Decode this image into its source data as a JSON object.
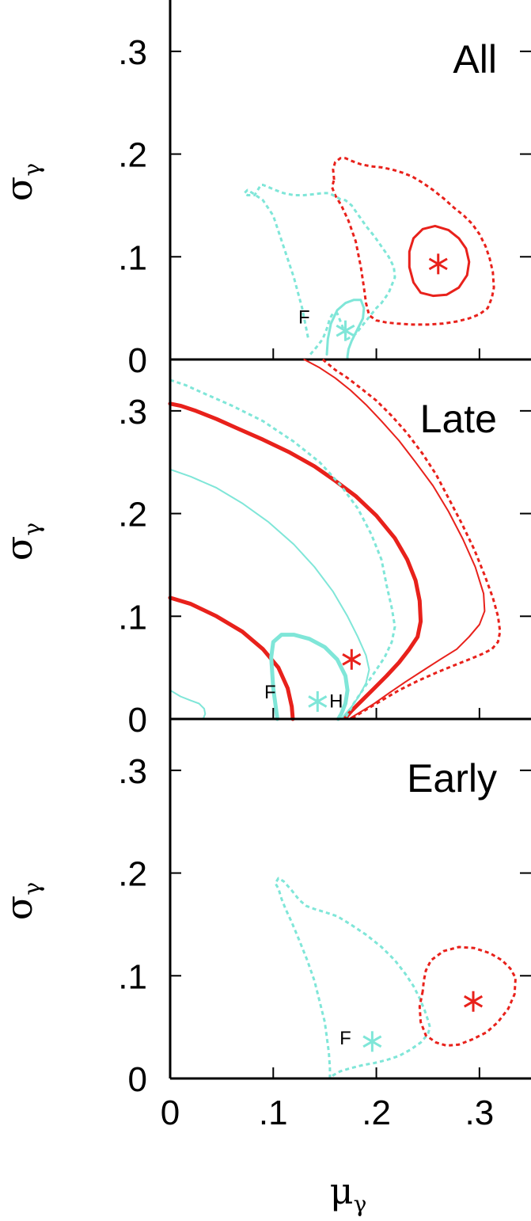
{
  "chart_data": [
    {
      "type": "line",
      "title": "All",
      "xlim": [
        0,
        0.35
      ],
      "ylim": [
        0,
        0.35
      ],
      "y_ticks": [
        0,
        0.1,
        0.2,
        0.3
      ],
      "y_tick_labels": [
        "0",
        ".1",
        ".2",
        ".3"
      ],
      "ylabel": {
        "symbol": "σ",
        "subscript": "γ"
      },
      "grid": false,
      "colors": {
        "red": "#e8211b",
        "cyan": "#7fe6d8"
      },
      "series": [
        {
          "color": "red",
          "style": "dotted",
          "width": 3,
          "x": [
            0.159,
            0.158,
            0.16,
            0.165,
            0.17,
            0.177,
            0.185,
            0.195,
            0.205,
            0.215,
            0.225,
            0.235,
            0.245,
            0.255,
            0.265,
            0.275,
            0.285,
            0.293,
            0.3,
            0.306,
            0.31,
            0.313,
            0.314,
            0.312,
            0.308,
            0.3,
            0.29,
            0.278,
            0.265,
            0.25,
            0.235,
            0.22,
            0.21,
            0.2,
            0.193,
            0.19,
            0.188,
            0.185,
            0.18,
            0.173,
            0.166,
            0.16,
            0.157,
            0.159
          ],
          "y": [
            0.175,
            0.185,
            0.192,
            0.196,
            0.196,
            0.193,
            0.19,
            0.188,
            0.187,
            0.185,
            0.182,
            0.178,
            0.172,
            0.165,
            0.157,
            0.148,
            0.14,
            0.132,
            0.122,
            0.11,
            0.098,
            0.085,
            0.07,
            0.06,
            0.05,
            0.044,
            0.04,
            0.037,
            0.035,
            0.034,
            0.034,
            0.035,
            0.036,
            0.038,
            0.043,
            0.055,
            0.07,
            0.09,
            0.115,
            0.135,
            0.15,
            0.16,
            0.168,
            0.175
          ]
        },
        {
          "color": "red",
          "style": "solid",
          "width": 3,
          "x": [
            0.232,
            0.236,
            0.245,
            0.257,
            0.27,
            0.28,
            0.287,
            0.29,
            0.288,
            0.28,
            0.268,
            0.255,
            0.243,
            0.236,
            0.232,
            0.232
          ],
          "y": [
            0.105,
            0.118,
            0.127,
            0.13,
            0.126,
            0.118,
            0.108,
            0.095,
            0.082,
            0.07,
            0.063,
            0.062,
            0.065,
            0.075,
            0.09,
            0.105
          ]
        },
        {
          "color": "cyan",
          "style": "dotted",
          "width": 3,
          "x": [
            0.136,
            0.142,
            0.148,
            0.152,
            0.155,
            0.158,
            0.162,
            0.168,
            0.172,
            0.18,
            0.188,
            0.192,
            0.196,
            0.2,
            0.205,
            0.212,
            0.218,
            0.217,
            0.212,
            0.205,
            0.198,
            0.19,
            0.183,
            0.176,
            0.17,
            0.165,
            0.162,
            0.158,
            0.154,
            0.148,
            0.14,
            0.13,
            0.12,
            0.11,
            0.102,
            0.095,
            0.09,
            0.088,
            0.085,
            0.082,
            0.075,
            0.072,
            0.075,
            0.08,
            0.09,
            0.1,
            0.11,
            0.12,
            0.128,
            0.134
          ],
          "y": [
            0.005,
            0.012,
            0.02,
            0.03,
            0.04,
            0.045,
            0.045,
            0.03,
            0.02,
            0.025,
            0.035,
            0.04,
            0.045,
            0.05,
            0.055,
            0.065,
            0.08,
            0.09,
            0.1,
            0.11,
            0.12,
            0.13,
            0.14,
            0.15,
            0.155,
            0.156,
            0.158,
            0.16,
            0.162,
            0.162,
            0.161,
            0.16,
            0.16,
            0.162,
            0.165,
            0.168,
            0.17,
            0.17,
            0.165,
            0.16,
            0.16,
            0.162,
            0.165,
            0.162,
            0.155,
            0.14,
            0.11,
            0.08,
            0.05,
            0.02
          ]
        },
        {
          "color": "cyan",
          "style": "solid",
          "width": 3,
          "x": [
            0.152,
            0.153,
            0.156,
            0.162,
            0.17,
            0.178,
            0.185,
            0.188,
            0.187,
            0.182,
            0.176,
            0.173,
            0.172,
            0.172
          ],
          "y": [
            0.005,
            0.02,
            0.035,
            0.048,
            0.055,
            0.058,
            0.058,
            0.05,
            0.04,
            0.03,
            0.018,
            0.01,
            0.003,
            0.0
          ]
        }
      ],
      "markers": [
        {
          "color": "red",
          "x": 0.26,
          "y": 0.093
        },
        {
          "color": "cyan",
          "x": 0.17,
          "y": 0.028
        }
      ],
      "annotations": [
        {
          "text": "F",
          "x": 0.13,
          "y": 0.04
        }
      ]
    },
    {
      "type": "line",
      "title": "Late",
      "xlim": [
        0,
        0.35
      ],
      "ylim": [
        0,
        0.35
      ],
      "y_ticks": [
        0,
        0.1,
        0.2,
        0.3
      ],
      "y_tick_labels": [
        "0",
        ".1",
        ".2",
        ".3"
      ],
      "ylabel": {
        "symbol": "σ",
        "subscript": "γ"
      },
      "grid": false,
      "colors": {
        "red": "#e8211b",
        "cyan": "#7fe6d8"
      },
      "series": [
        {
          "color": "red",
          "style": "dotted",
          "width": 3,
          "x": [
            0.148,
            0.16,
            0.172,
            0.185,
            0.2,
            0.215,
            0.23,
            0.245,
            0.258,
            0.27,
            0.283,
            0.295,
            0.305,
            0.313,
            0.318,
            0.32,
            0.318,
            0.312,
            0.302,
            0.29,
            0.275,
            0.258,
            0.24,
            0.222,
            0.205,
            0.19,
            0.177
          ],
          "y": [
            0.35,
            0.34,
            0.332,
            0.322,
            0.31,
            0.295,
            0.278,
            0.258,
            0.238,
            0.215,
            0.19,
            0.165,
            0.14,
            0.118,
            0.1,
            0.085,
            0.075,
            0.068,
            0.063,
            0.058,
            0.052,
            0.045,
            0.037,
            0.028,
            0.018,
            0.009,
            0.001
          ]
        },
        {
          "color": "red",
          "style": "solid",
          "width": 2,
          "x": [
            0.13,
            0.145,
            0.16,
            0.175,
            0.19,
            0.205,
            0.222,
            0.238,
            0.255,
            0.27,
            0.284,
            0.296,
            0.304,
            0.305,
            0.3,
            0.29,
            0.278,
            0.262,
            0.245,
            0.228,
            0.212,
            0.198,
            0.185,
            0.175
          ],
          "y": [
            0.35,
            0.342,
            0.332,
            0.32,
            0.306,
            0.29,
            0.271,
            0.25,
            0.227,
            0.202,
            0.175,
            0.148,
            0.122,
            0.105,
            0.092,
            0.08,
            0.068,
            0.058,
            0.047,
            0.036,
            0.025,
            0.015,
            0.007,
            0.001
          ]
        },
        {
          "color": "red",
          "style": "solid",
          "width": 5,
          "x": [
            0.0,
            0.01,
            0.025,
            0.045,
            0.065,
            0.09,
            0.115,
            0.14,
            0.16,
            0.18,
            0.2,
            0.218,
            0.23,
            0.238,
            0.242,
            0.243,
            0.24,
            0.232,
            0.222,
            0.21,
            0.198,
            0.186,
            0.176,
            0.17
          ],
          "y": [
            0.307,
            0.305,
            0.3,
            0.292,
            0.283,
            0.272,
            0.26,
            0.246,
            0.232,
            0.217,
            0.198,
            0.176,
            0.155,
            0.135,
            0.115,
            0.095,
            0.08,
            0.068,
            0.055,
            0.042,
            0.03,
            0.018,
            0.008,
            0.001
          ]
        },
        {
          "color": "red",
          "style": "solid",
          "width": 5,
          "x": [
            0.0,
            0.02,
            0.045,
            0.07,
            0.09,
            0.105,
            0.114,
            0.118,
            0.119
          ],
          "y": [
            0.118,
            0.112,
            0.1,
            0.085,
            0.068,
            0.05,
            0.03,
            0.012,
            0.0
          ]
        },
        {
          "color": "cyan",
          "style": "dotted",
          "width": 3,
          "x": [
            0.0,
            0.015,
            0.035,
            0.06,
            0.09,
            0.12,
            0.145,
            0.165,
            0.182,
            0.195,
            0.205,
            0.21,
            0.215,
            0.218,
            0.215,
            0.208,
            0.198,
            0.188,
            0.178,
            0.17
          ],
          "y": [
            0.33,
            0.325,
            0.316,
            0.305,
            0.29,
            0.27,
            0.25,
            0.228,
            0.205,
            0.18,
            0.155,
            0.13,
            0.108,
            0.09,
            0.075,
            0.06,
            0.045,
            0.03,
            0.015,
            0.001
          ]
        },
        {
          "color": "cyan",
          "style": "solid",
          "width": 2,
          "x": [
            0.0,
            0.02,
            0.045,
            0.07,
            0.095,
            0.12,
            0.14,
            0.158,
            0.172,
            0.182,
            0.19,
            0.193,
            0.19,
            0.183,
            0.176,
            0.17,
            0.166
          ],
          "y": [
            0.243,
            0.236,
            0.225,
            0.21,
            0.192,
            0.17,
            0.148,
            0.124,
            0.1,
            0.08,
            0.062,
            0.048,
            0.035,
            0.022,
            0.012,
            0.005,
            0.0
          ]
        },
        {
          "color": "cyan",
          "style": "solid",
          "width": 5,
          "x": [
            0.104,
            0.1,
            0.098,
            0.1,
            0.108,
            0.12,
            0.135,
            0.15,
            0.162,
            0.17,
            0.172,
            0.17,
            0.166,
            0.163
          ],
          "y": [
            0.0,
            0.03,
            0.06,
            0.075,
            0.082,
            0.082,
            0.078,
            0.07,
            0.058,
            0.042,
            0.028,
            0.015,
            0.005,
            0.0
          ]
        },
        {
          "color": "cyan",
          "style": "solid",
          "width": 2,
          "x": [
            0.0,
            0.01,
            0.02,
            0.028,
            0.033,
            0.034,
            0.032
          ],
          "y": [
            0.028,
            0.022,
            0.018,
            0.015,
            0.01,
            0.005,
            0.0
          ]
        }
      ],
      "markers": [
        {
          "color": "red",
          "x": 0.176,
          "y": 0.058
        },
        {
          "color": "cyan",
          "x": 0.143,
          "y": 0.017
        }
      ],
      "annotations": [
        {
          "text": "F",
          "x": 0.097,
          "y": 0.025
        },
        {
          "text": "H",
          "x": 0.161,
          "y": 0.016
        }
      ]
    },
    {
      "type": "line",
      "title": "Early",
      "xlim": [
        0,
        0.35
      ],
      "ylim": [
        0,
        0.35
      ],
      "x_ticks": [
        0,
        0.1,
        0.2,
        0.3
      ],
      "x_tick_labels": [
        "0",
        ".1",
        ".2",
        ".3"
      ],
      "y_ticks": [
        0,
        0.1,
        0.2,
        0.3
      ],
      "y_tick_labels": [
        "0",
        ".1",
        ".2",
        ".3"
      ],
      "xlabel": {
        "symbol": "μ",
        "subscript": "γ"
      },
      "ylabel": {
        "symbol": "σ",
        "subscript": "γ"
      },
      "grid": false,
      "colors": {
        "red": "#e8211b",
        "cyan": "#7fe6d8"
      },
      "series": [
        {
          "color": "cyan",
          "style": "dotted",
          "width": 3,
          "x": [
            0.155,
            0.155,
            0.154,
            0.152,
            0.15,
            0.145,
            0.14,
            0.133,
            0.125,
            0.118,
            0.112,
            0.108,
            0.105,
            0.102,
            0.105,
            0.11,
            0.118,
            0.125,
            0.132,
            0.14,
            0.15,
            0.162,
            0.175,
            0.19,
            0.205,
            0.218,
            0.228,
            0.236,
            0.242,
            0.247,
            0.25,
            0.252,
            0.25,
            0.243,
            0.233,
            0.222,
            0.21,
            0.198,
            0.187,
            0.175,
            0.165,
            0.158,
            0.155
          ],
          "y": [
            0.0,
            0.01,
            0.025,
            0.04,
            0.055,
            0.075,
            0.095,
            0.115,
            0.135,
            0.152,
            0.165,
            0.175,
            0.185,
            0.19,
            0.195,
            0.192,
            0.183,
            0.174,
            0.168,
            0.165,
            0.162,
            0.158,
            0.15,
            0.14,
            0.128,
            0.115,
            0.102,
            0.09,
            0.078,
            0.066,
            0.057,
            0.05,
            0.043,
            0.035,
            0.028,
            0.022,
            0.018,
            0.015,
            0.013,
            0.01,
            0.007,
            0.003,
            0.0
          ]
        },
        {
          "color": "red",
          "style": "dotted",
          "width": 3,
          "x": [
            0.245,
            0.242,
            0.243,
            0.248,
            0.258,
            0.268,
            0.28,
            0.293,
            0.307,
            0.318,
            0.328,
            0.334,
            0.335,
            0.33,
            0.322,
            0.31,
            0.295,
            0.28,
            0.265,
            0.253,
            0.248,
            0.246,
            0.245
          ],
          "y": [
            0.085,
            0.07,
            0.055,
            0.042,
            0.035,
            0.032,
            0.033,
            0.038,
            0.045,
            0.055,
            0.068,
            0.082,
            0.098,
            0.107,
            0.115,
            0.122,
            0.127,
            0.128,
            0.124,
            0.115,
            0.105,
            0.095,
            0.085
          ]
        }
      ],
      "markers": [
        {
          "color": "red",
          "x": 0.294,
          "y": 0.075
        },
        {
          "color": "cyan",
          "x": 0.196,
          "y": 0.036
        }
      ],
      "annotations": [
        {
          "text": "F",
          "x": 0.17,
          "y": 0.038
        }
      ]
    }
  ]
}
